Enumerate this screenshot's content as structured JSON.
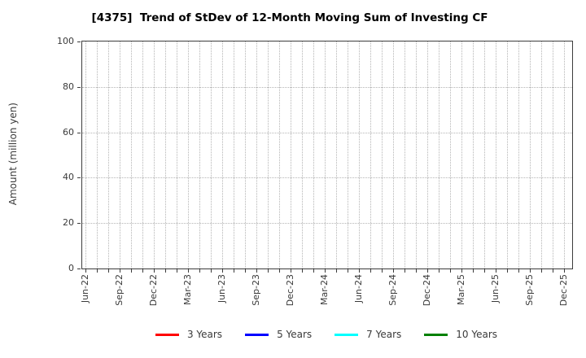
{
  "title": "[4375]  Trend of StDev of 12-Month Moving Sum of Investing CF",
  "chart_data": {
    "type": "line",
    "title": "[4375]  Trend of StDev of 12-Month Moving Sum of Investing CF",
    "xlabel": "",
    "ylabel": "Amount (million yen)",
    "ylim": [
      0,
      100
    ],
    "yticks": [
      0,
      20,
      40,
      60,
      80,
      100
    ],
    "xticklabels": [
      "Jun-22",
      "Sep-22",
      "Dec-22",
      "Mar-23",
      "Jun-23",
      "Sep-23",
      "Dec-23",
      "Mar-24",
      "Jun-24",
      "Sep-24",
      "Dec-24",
      "Mar-25",
      "Jun-25",
      "Sep-25",
      "Dec-25"
    ],
    "months_total": 43,
    "months_per_labeled_tick": 3,
    "grid": true,
    "grid_style": "dotted",
    "legend_position": "bottom center",
    "series": [
      {
        "name": "3 Years",
        "color": "#ff0000",
        "values": []
      },
      {
        "name": "5 Years",
        "color": "#0000ff",
        "values": []
      },
      {
        "name": "7 Years",
        "color": "#00ffff",
        "values": []
      },
      {
        "name": "10 Years",
        "color": "#008000",
        "values": []
      }
    ]
  },
  "colors": {
    "frame": "#3c3c3c",
    "grid": "#b5b5b5",
    "text": "#3a3a3a",
    "title": "#000000",
    "background": "#ffffff"
  }
}
